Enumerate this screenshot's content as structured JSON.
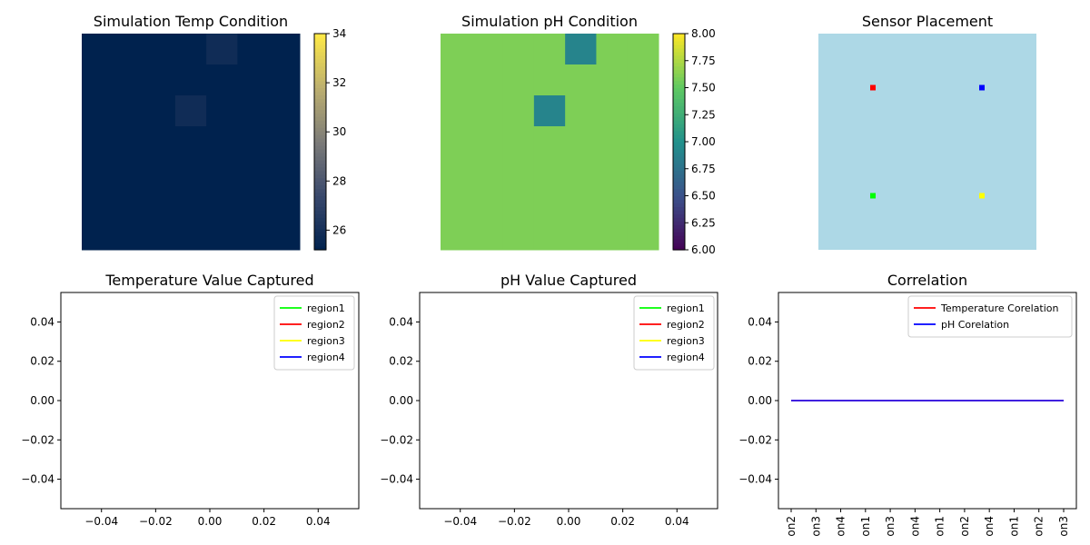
{
  "chart_data": [
    {
      "id": "temp-heatmap",
      "type": "heatmap",
      "title": "Simulation Temp Condition",
      "grid": {
        "rows": 7,
        "cols": 7
      },
      "cells": [
        [
          25.2,
          25.2,
          25.2,
          25.2,
          25.8,
          25.2,
          25.2
        ],
        [
          25.2,
          25.2,
          25.2,
          25.2,
          25.2,
          25.2,
          25.2
        ],
        [
          25.2,
          25.2,
          25.2,
          25.8,
          25.2,
          25.2,
          25.2
        ],
        [
          25.2,
          25.2,
          25.2,
          25.2,
          25.2,
          25.2,
          25.2
        ],
        [
          25.2,
          25.2,
          25.2,
          25.2,
          25.2,
          25.2,
          25.2
        ],
        [
          25.2,
          25.2,
          25.2,
          25.2,
          25.2,
          25.2,
          25.2
        ],
        [
          25.2,
          25.2,
          25.2,
          25.2,
          25.2,
          25.2,
          25.2
        ]
      ],
      "colormap": "cividis",
      "colorbar": {
        "min": 25.2,
        "max": 34,
        "ticks": [
          26,
          28,
          30,
          32,
          34
        ]
      }
    },
    {
      "id": "ph-heatmap",
      "type": "heatmap",
      "title": "Simulation pH Condition",
      "grid": {
        "rows": 7,
        "cols": 7
      },
      "cells": [
        [
          7.6,
          7.6,
          7.6,
          7.6,
          6.9,
          7.6,
          7.6
        ],
        [
          7.6,
          7.6,
          7.6,
          7.6,
          7.6,
          7.6,
          7.6
        ],
        [
          7.6,
          7.6,
          7.6,
          6.9,
          7.6,
          7.6,
          7.6
        ],
        [
          7.6,
          7.6,
          7.6,
          7.6,
          7.6,
          7.6,
          7.6
        ],
        [
          7.6,
          7.6,
          7.6,
          7.6,
          7.6,
          7.6,
          7.6
        ],
        [
          7.6,
          7.6,
          7.6,
          7.6,
          7.6,
          7.6,
          7.6
        ],
        [
          7.6,
          7.6,
          7.6,
          7.6,
          7.6,
          7.6,
          7.6
        ]
      ],
      "colormap": "viridis",
      "colorbar": {
        "min": 6.0,
        "max": 8.0,
        "ticks": [
          "6.00",
          "6.25",
          "6.50",
          "6.75",
          "7.00",
          "7.25",
          "7.50",
          "7.75",
          "8.00"
        ]
      }
    },
    {
      "id": "sensor-placement",
      "type": "scatter",
      "title": "Sensor Placement",
      "background_color": "#add8e6",
      "xlim": [
        0,
        1
      ],
      "ylim": [
        0,
        1
      ],
      "points": [
        {
          "x": 0.25,
          "y": 0.75,
          "color": "#ff0000"
        },
        {
          "x": 0.75,
          "y": 0.75,
          "color": "#0000ff"
        },
        {
          "x": 0.25,
          "y": 0.25,
          "color": "#00ff00"
        },
        {
          "x": 0.75,
          "y": 0.25,
          "color": "#ffff00"
        }
      ]
    },
    {
      "id": "temp-captured",
      "type": "line",
      "title": "Temperature Value Captured",
      "xticks": [
        "−0.04",
        "−0.02",
        "0.00",
        "0.02",
        "0.04"
      ],
      "yticks": [
        "−0.04",
        "−0.02",
        "0.00",
        "0.02",
        "0.04"
      ],
      "xlim": [
        -0.055,
        0.055
      ],
      "ylim": [
        -0.055,
        0.055
      ],
      "series": [
        {
          "name": "region1",
          "color": "#00ff00",
          "values": []
        },
        {
          "name": "region2",
          "color": "#ff0000",
          "values": []
        },
        {
          "name": "region3",
          "color": "#ffff00",
          "values": []
        },
        {
          "name": "region4",
          "color": "#0000ff",
          "values": []
        }
      ],
      "legend": "top-right"
    },
    {
      "id": "ph-captured",
      "type": "line",
      "title": "pH Value Captured",
      "xticks": [
        "−0.04",
        "−0.02",
        "0.00",
        "0.02",
        "0.04"
      ],
      "yticks": [
        "−0.04",
        "−0.02",
        "0.00",
        "0.02",
        "0.04"
      ],
      "xlim": [
        -0.055,
        0.055
      ],
      "ylim": [
        -0.055,
        0.055
      ],
      "series": [
        {
          "name": "region1",
          "color": "#00ff00",
          "values": []
        },
        {
          "name": "region2",
          "color": "#ff0000",
          "values": []
        },
        {
          "name": "region3",
          "color": "#ffff00",
          "values": []
        },
        {
          "name": "region4",
          "color": "#0000ff",
          "values": []
        }
      ],
      "legend": "top-right"
    },
    {
      "id": "correlation",
      "type": "line",
      "title": "Correlation",
      "categories": [
        "on2",
        "on3",
        "on4",
        "on1",
        "on3",
        "on4",
        "on1",
        "on2",
        "on4",
        "on1",
        "on2",
        "on3"
      ],
      "yticks": [
        "−0.04",
        "−0.02",
        "0.00",
        "0.02",
        "0.04"
      ],
      "ylim": [
        -0.055,
        0.055
      ],
      "series": [
        {
          "name": "Temperature Corelation",
          "color": "#ff0000",
          "values": [
            0,
            0,
            0,
            0,
            0,
            0,
            0,
            0,
            0,
            0,
            0,
            0
          ]
        },
        {
          "name": "pH Corelation",
          "color": "#0000ff",
          "values": [
            0,
            0,
            0,
            0,
            0,
            0,
            0,
            0,
            0,
            0,
            0,
            0
          ]
        }
      ],
      "legend": "top-right"
    }
  ]
}
